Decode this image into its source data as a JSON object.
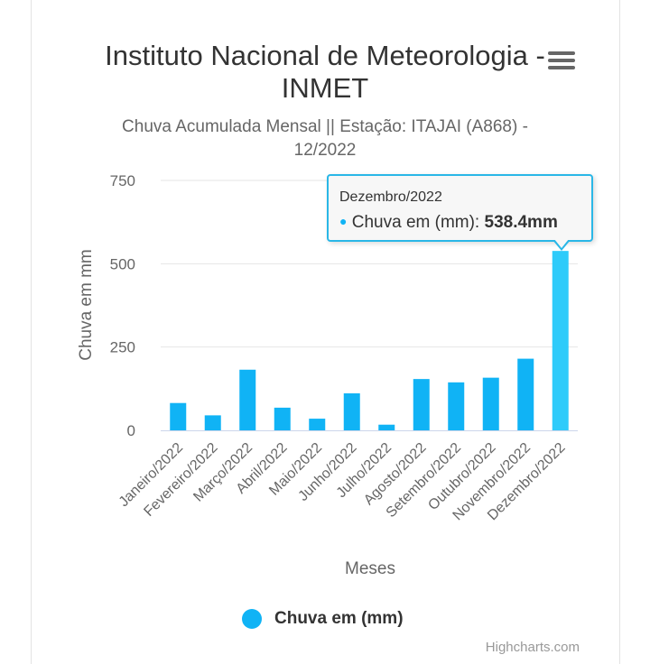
{
  "title": "Instituto Nacional de Meteorologia - INMET",
  "subtitle": "Chuva Acumulada Mensal || Estação: ITAJAI (A868) - 12/2022",
  "menu_icon": "hamburger-menu-icon",
  "tooltip": {
    "header": "Dezembro/2022",
    "series_label": "Chuva em (mm): ",
    "value_text": "538.4mm"
  },
  "legend": {
    "label": "Chuva em (mm)"
  },
  "credits": "Highcharts.com",
  "chart_data": {
    "type": "bar",
    "categories": [
      "Janeiro/2022",
      "Fevereiro/2022",
      "Março/2022",
      "Abril/2022",
      "Maio/2022",
      "Junho/2022",
      "Julho/2022",
      "Agosto/2022",
      "Setembro/2022",
      "Outubro/2022",
      "Novembro/2022",
      "Dezembro/2022"
    ],
    "series": [
      {
        "name": "Chuva em (mm)",
        "values": [
          82,
          45,
          182,
          68,
          35,
          111,
          17,
          154,
          144,
          158,
          215,
          538.4
        ],
        "color": "#10b3f5"
      }
    ],
    "xlabel": "Meses",
    "ylabel": "Chuva em mm",
    "ylim": [
      0,
      750
    ],
    "yticks": [
      0,
      250,
      500,
      750
    ],
    "grid": true,
    "legend_position": "bottom-center",
    "highlighted_index": 11,
    "highlight_color": "#2ecbfa"
  }
}
